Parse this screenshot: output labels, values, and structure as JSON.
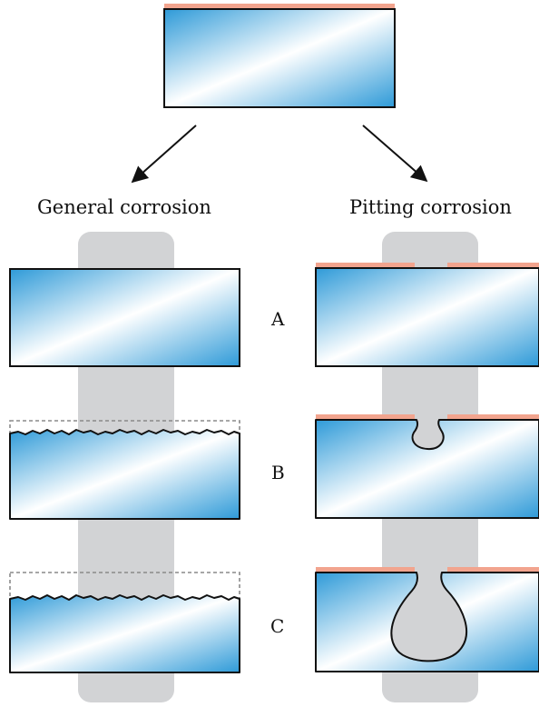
{
  "labels": {
    "general": "General corrosion",
    "pitting": "Pitting corrosion"
  },
  "stages": [
    "A",
    "B",
    "C"
  ],
  "colors": {
    "metal_dark": "#2e9ad8",
    "metal_light": "#ffffff",
    "coating": "#f2a48e",
    "environment": "#d2d3d5",
    "outline": "#111111",
    "original_surface": "#8a8a8a"
  }
}
